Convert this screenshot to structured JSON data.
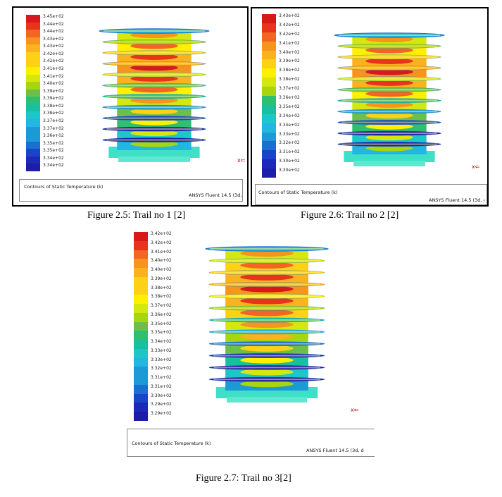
{
  "figures": [
    {
      "legend_labels": [
        "3.45e+02",
        "3.44e+02",
        "3.44e+02",
        "3.43e+02",
        "3.43e+02",
        "3.42e+02",
        "3.42e+02",
        "3.41e+02",
        "3.41e+02",
        "3.40e+02",
        "3.39e+02",
        "3.39e+02",
        "3.38e+02",
        "3.38e+02",
        "3.37e+02",
        "3.37e+02",
        "3.36e+02",
        "3.35e+02",
        "3.35e+02",
        "3.34e+02",
        "3.34e+02"
      ],
      "footer_title": "Contours of Static Temperature (k)",
      "footer_software": "ANSYS Fluent 14.5 (3d,",
      "caption": "Figure 2.5: Trail no 1 [2]"
    },
    {
      "legend_labels": [
        "3.43e+02",
        "3.42e+02",
        "3.42e+02",
        "3.41e+02",
        "3.40e+02",
        "3.39e+02",
        "3.38e+02",
        "3.38e+02",
        "3.37e+02",
        "3.36e+02",
        "3.35e+02",
        "3.34e+02",
        "3.34e+02",
        "3.33e+02",
        "3.32e+02",
        "3.31e+02",
        "3.30e+02",
        "3.30e+02"
      ],
      "footer_title": "Contours of Static Temperature (k)",
      "footer_software": "ANSYS Fluent 14.5 (3d, ‹",
      "caption": "Figure 2.6: Trail no 2 [2]"
    },
    {
      "legend_labels": [
        "3.42e+02",
        "3.42e+02",
        "3.41e+02",
        "3.40e+02",
        "3.40e+02",
        "3.39e+02",
        "3.38e+02",
        "3.38e+02",
        "3.37e+02",
        "3.36e+02",
        "3.35e+02",
        "3.35e+02",
        "3.34e+02",
        "3.33e+02",
        "3.33e+02",
        "3.32e+02",
        "3.31e+02",
        "3.31e+02",
        "3.30e+02",
        "3.29e+02",
        "3.29e+02"
      ],
      "footer_title": "Contours of Static Temperature (k)",
      "footer_software": "ANSYS Fluent 14.5 (3d, d",
      "caption": "Figure 2.7: Trail no 3[2]"
    }
  ],
  "axis_marker": "x",
  "colormap": [
    "#d7191c",
    "#e8331d",
    "#f26522",
    "#f7941d",
    "#fbb21f",
    "#fcd116",
    "#ffef00",
    "#d4e80f",
    "#a6d70e",
    "#6cc04a",
    "#2fbf71",
    "#19c0a0",
    "#1bc7c9",
    "#22b7e0",
    "#1c9ad6",
    "#1a6fd0",
    "#1a45c8",
    "#1b2ab8",
    "#1d1da8"
  ]
}
